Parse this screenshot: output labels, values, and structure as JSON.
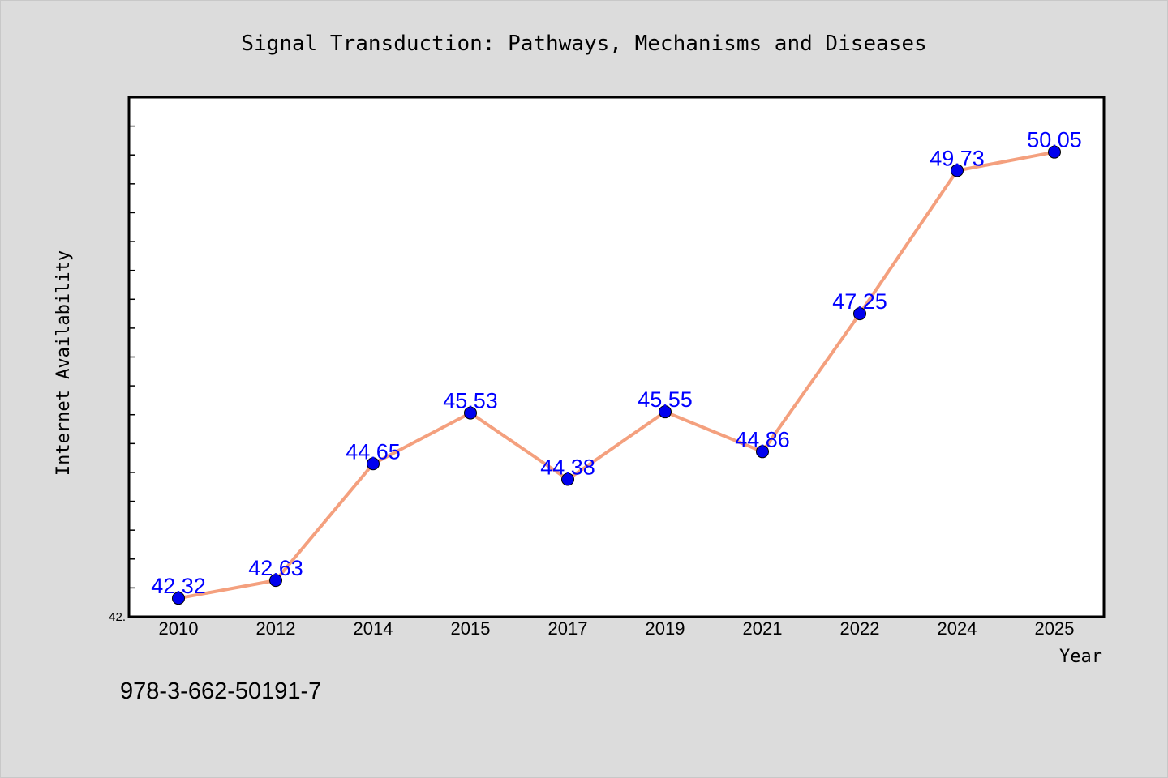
{
  "chart_data": {
    "type": "line",
    "title": "Signal Transduction: Pathways, Mechanisms and Diseases",
    "xlabel": "Year",
    "ylabel": "Internet Availability",
    "categories": [
      "2010",
      "2012",
      "2014",
      "2015",
      "2017",
      "2019",
      "2021",
      "2022",
      "2024",
      "2025"
    ],
    "series": [
      {
        "values": [
          42.32,
          42.63,
          44.65,
          45.53,
          44.38,
          45.55,
          44.86,
          47.25,
          49.73,
          50.05
        ]
      }
    ],
    "ylim": [
      42.0,
      51.0
    ],
    "ytick_labels": [
      "42."
    ],
    "grid": false,
    "line_color": "#f4a07e",
    "marker_color": "#0000ee",
    "label_color": "#0000ff",
    "background_color": "#dcdcdc",
    "plot_background": "#ffffff"
  },
  "footer_note": "978-3-662-50191-7"
}
